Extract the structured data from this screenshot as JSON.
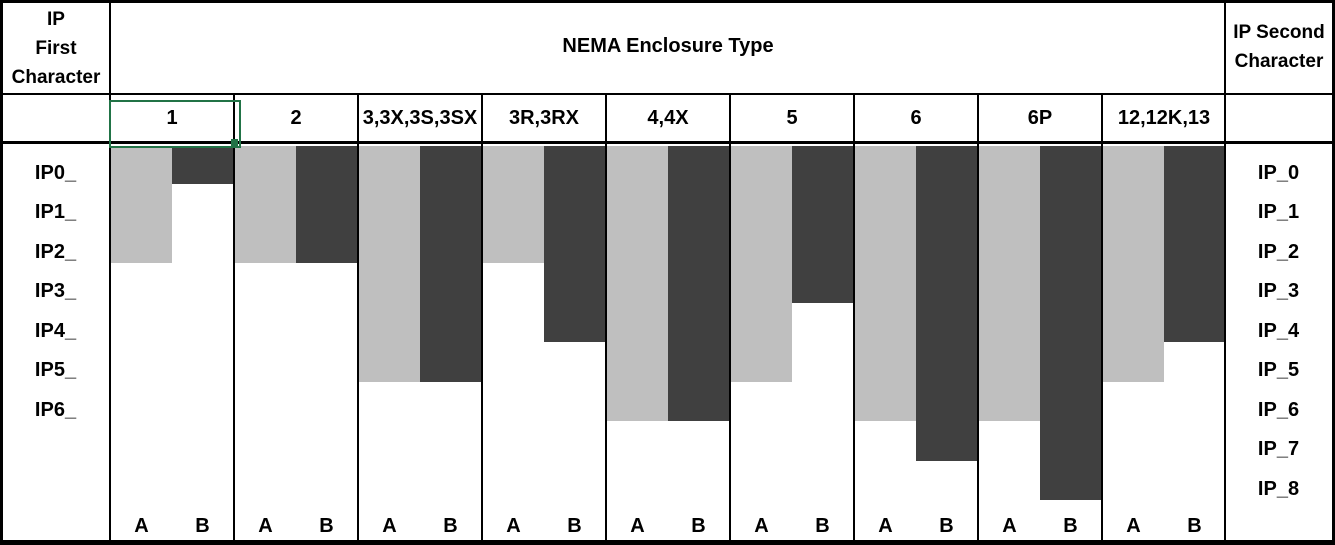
{
  "header": {
    "left_title": "IP\nFirst\nCharacter",
    "center_title": "NEMA Enclosure Type",
    "right_title": "IP Second\nCharacter"
  },
  "selection": {
    "selected_header_cell": "1"
  },
  "colors": {
    "bar_a": "#bfbfbf",
    "bar_b": "#404040",
    "selection": "#217346",
    "grid_line": "#000000",
    "background": "#ffffff"
  },
  "chart_data": {
    "type": "bar",
    "title": "NEMA Enclosure Type",
    "orientation": "vertical, bars hang downward from header; bar depth = equivalent IEC 60529 IP characteristic numeral",
    "categories": [
      "1",
      "2",
      "3,3X,3S,3SX",
      "3R,3RX",
      "4,4X",
      "5",
      "6",
      "6P",
      "12,12K,13"
    ],
    "series": [
      {
        "name": "A",
        "meaning": "IP first characteristic numeral reached",
        "values": [
          2,
          2,
          5,
          2,
          6,
          5,
          6,
          6,
          5
        ],
        "color": "#bfbfbf"
      },
      {
        "name": "B",
        "meaning": "IP second characteristic numeral reached",
        "values": [
          0,
          2,
          5,
          4,
          6,
          3,
          7,
          8,
          4
        ],
        "color": "#404040"
      }
    ],
    "bar_pair_labels": [
      "A",
      "B"
    ],
    "left_axis_title": "IP First Character",
    "left_axis_labels": [
      "IP0_",
      "IP1_",
      "IP2_",
      "IP3_",
      "IP4_",
      "IP5_",
      "IP6_"
    ],
    "right_axis_title": "IP Second Character",
    "right_axis_labels": [
      "IP_0",
      "IP_1",
      "IP_2",
      "IP_3",
      "IP_4",
      "IP_5",
      "IP_6",
      "IP_7",
      "IP_8"
    ],
    "value_range": [
      0,
      8
    ],
    "grid": false,
    "legend": "none"
  }
}
